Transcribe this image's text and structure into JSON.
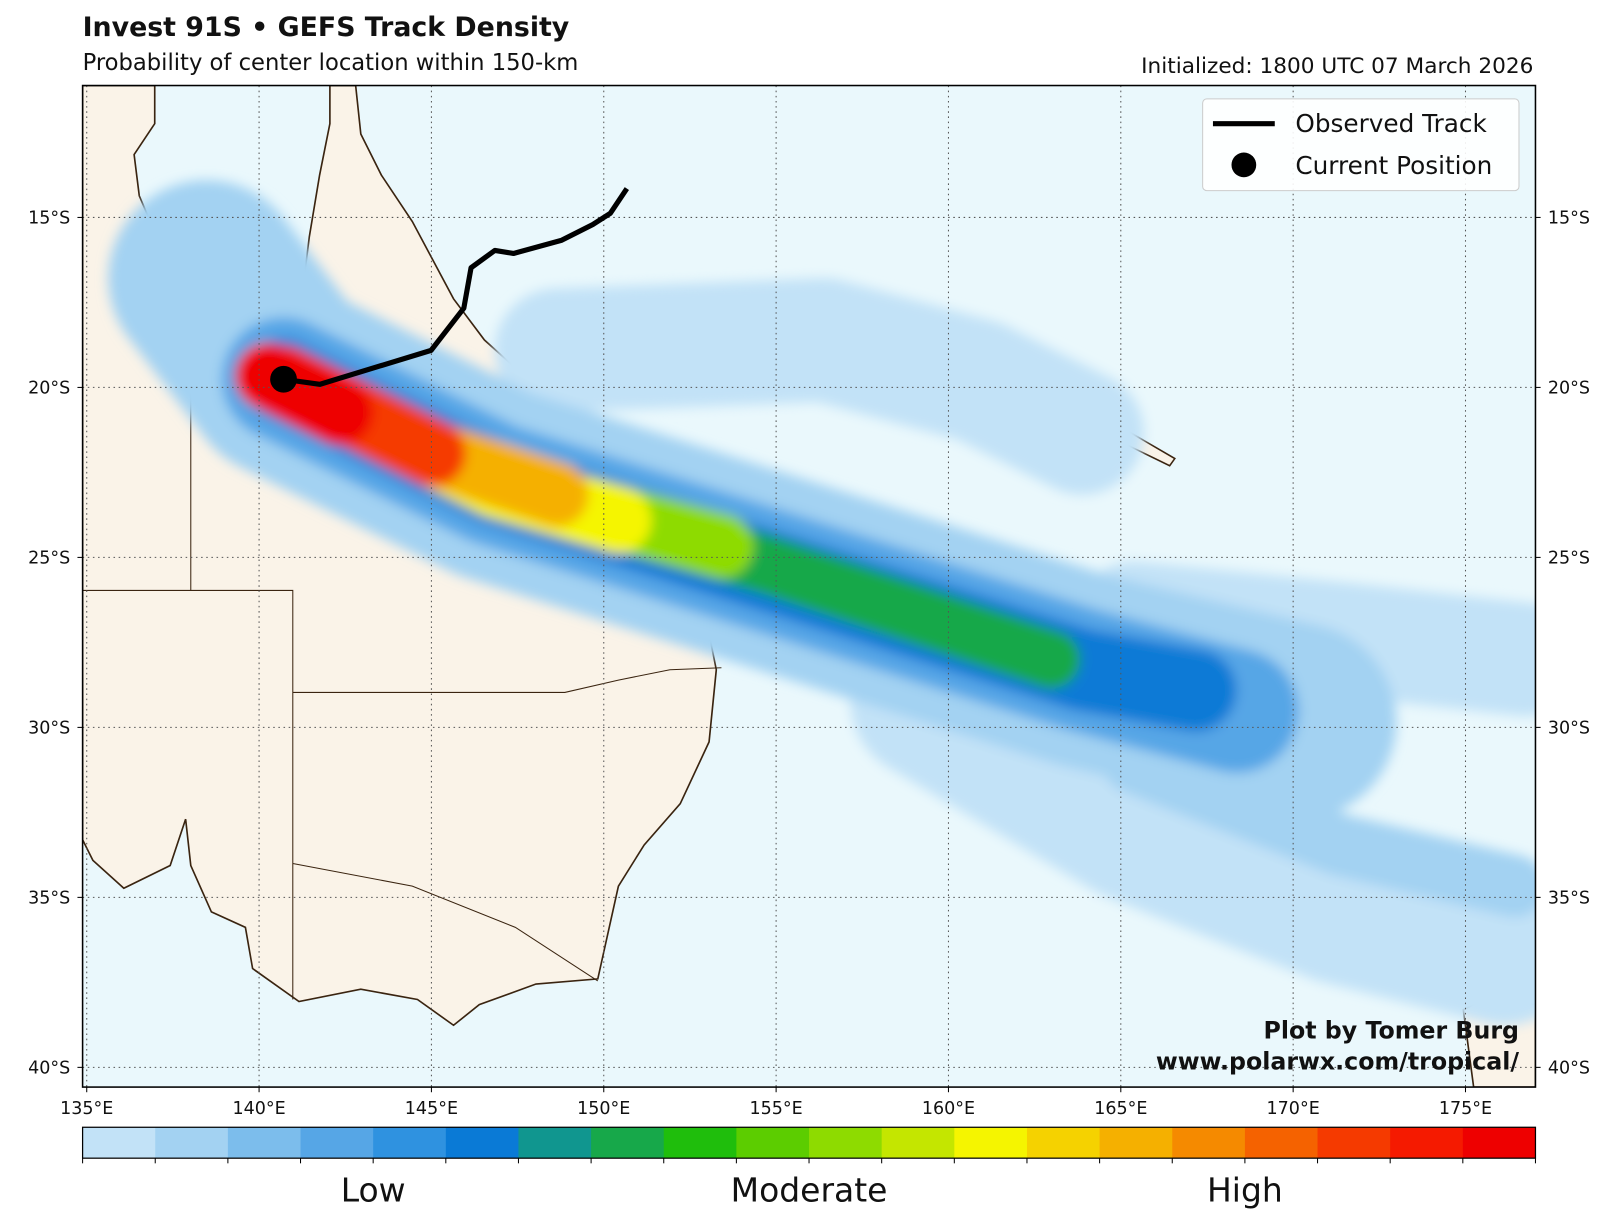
{
  "map": {
    "title": "Invest 91S • GEFS Track Density",
    "subtitle": "Probability of center location within 150-km",
    "initialized": "Initialized: 1800 UTC 07 March 2026",
    "xlim": [
      134.88,
      177.03
    ],
    "ylim": [
      -40.58,
      -11.12
    ],
    "xticks": [
      {
        "value": 135,
        "label": "135°E"
      },
      {
        "value": 140,
        "label": "140°E"
      },
      {
        "value": 145,
        "label": "145°E"
      },
      {
        "value": 150,
        "label": "150°E"
      },
      {
        "value": 155,
        "label": "155°E"
      },
      {
        "value": 160,
        "label": "160°E"
      },
      {
        "value": 165,
        "label": "165°E"
      },
      {
        "value": 170,
        "label": "170°E"
      },
      {
        "value": 175,
        "label": "175°E"
      }
    ],
    "yticks": [
      {
        "value": -15,
        "label": "15°S"
      },
      {
        "value": -20,
        "label": "20°S"
      },
      {
        "value": -25,
        "label": "25°S"
      },
      {
        "value": -30,
        "label": "30°S"
      },
      {
        "value": -35,
        "label": "35°S"
      },
      {
        "value": -40,
        "label": "40°S"
      }
    ],
    "grid": true,
    "legend": [
      "Observed Track",
      "Current Position"
    ],
    "observed_track": {
      "lon": [
        150.67,
        150.19,
        149.68,
        148.78,
        147.38,
        146.84,
        146.15,
        145.94,
        144.99,
        141.76,
        140.71
      ],
      "lat": [
        -14.15,
        -14.88,
        -15.21,
        -15.67,
        -16.06,
        -15.97,
        -16.48,
        -17.67,
        -18.91,
        -19.91,
        -19.76
      ]
    },
    "current_position": {
      "lon": 140.71,
      "lat": -19.76
    },
    "colorbar": {
      "colors": [
        "#c2e2f7",
        "#a3d2f2",
        "#7cbdec",
        "#56a6e6",
        "#2f92e0",
        "#0a7ad6",
        "#10968f",
        "#17a84a",
        "#1fbe0c",
        "#5ccd00",
        "#8edb00",
        "#c4e600",
        "#f5f500",
        "#f5d200",
        "#f5b000",
        "#f58a00",
        "#f56200",
        "#f53a00",
        "#f51a00",
        "#ee0000"
      ],
      "labels": [
        "Low",
        "Moderate",
        "High"
      ]
    },
    "credit": [
      "Plot by Tomer Burg",
      "www.polarwx.com/tropical/"
    ]
  }
}
